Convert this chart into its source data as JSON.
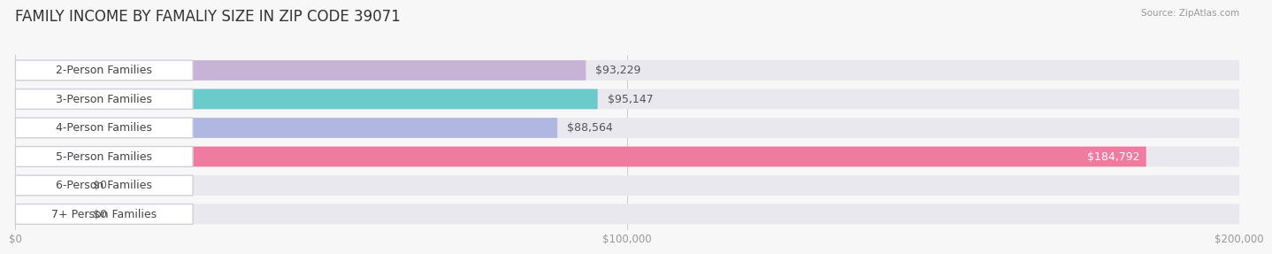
{
  "title": "FAMILY INCOME BY FAMALIY SIZE IN ZIP CODE 39071",
  "source": "Source: ZipAtlas.com",
  "categories": [
    "2-Person Families",
    "3-Person Families",
    "4-Person Families",
    "5-Person Families",
    "6-Person Families",
    "7+ Person Families"
  ],
  "values": [
    93229,
    95147,
    88564,
    184792,
    0,
    0
  ],
  "bar_colors": [
    "#c4aed4",
    "#5ec8c8",
    "#aab2e0",
    "#f07098",
    "#f5c899",
    "#f5a898"
  ],
  "value_labels": [
    "$93,229",
    "$95,147",
    "$88,564",
    "$184,792",
    "$0",
    "$0"
  ],
  "xlim": [
    0,
    200000
  ],
  "xticks": [
    0,
    100000,
    200000
  ],
  "xtick_labels": [
    "$0",
    "$100,000",
    "$200,000"
  ],
  "background_color": "#f7f7f7",
  "bar_bg_color": "#e8e8ee",
  "title_fontsize": 12,
  "label_fontsize": 9,
  "value_fontsize": 9
}
